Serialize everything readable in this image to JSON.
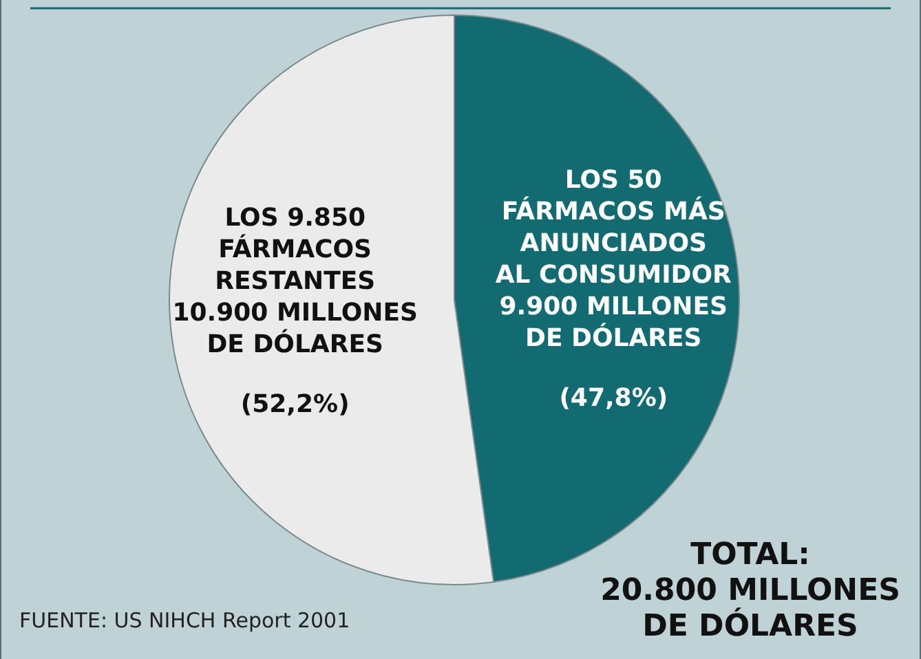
{
  "chart_data": {
    "type": "pie",
    "categories": [
      "LOS 50\nFÁRMACOS MÁS\nANUNCIADOS\nAL CONSUMIDOR\n9.900 MILLONES\nDE DÓLARES",
      "LOS 9.850\nFÁRMACOS\nRESTANTES\n10.900 MILLONES\nDE DÓLARES"
    ],
    "values": [
      47.8,
      52.2
    ],
    "value_labels": [
      "(47,8%)",
      "(52,2%)"
    ],
    "colors": [
      "#136b72",
      "#ebebeb"
    ],
    "annotations": [
      "TOTAL:\n20.800 MILLONES\nDE DÓLARES",
      "FUENTE: US NIHCH Report 2001"
    ]
  }
}
